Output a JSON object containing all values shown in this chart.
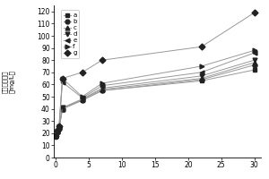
{
  "x": [
    0,
    0.25,
    0.5,
    1,
    4,
    7,
    22,
    30
  ],
  "series": {
    "a": [
      18,
      22,
      25,
      40,
      47,
      55,
      63,
      72
    ],
    "b": [
      18,
      21,
      24,
      40,
      47,
      55,
      64,
      76
    ],
    "c": [
      18,
      21,
      24,
      40,
      48,
      56,
      65,
      78
    ],
    "d": [
      18,
      21,
      24,
      41,
      48,
      57,
      67,
      80
    ],
    "e": [
      18,
      21,
      25,
      62,
      49,
      59,
      70,
      86
    ],
    "f": [
      18,
      22,
      26,
      65,
      50,
      61,
      75,
      88
    ],
    "g": [
      18,
      22,
      26,
      65,
      70,
      80,
      91,
      119
    ]
  },
  "markers": {
    "a": "s",
    "b": "o",
    "c": "^",
    "d": "v",
    "e": "<",
    "f": ">",
    "g": "D"
  },
  "ylabel_chars": [
    "溶",
    "解",
    "性",
    "总",
    "固",
    "体",
    "",
    "(mg/L)"
  ],
  "ylim": [
    0,
    125
  ],
  "xlim": [
    -0.3,
    31
  ],
  "yticks": [
    0,
    10,
    20,
    30,
    40,
    50,
    60,
    70,
    80,
    90,
    100,
    110,
    120
  ],
  "xticks": [
    0,
    5,
    10,
    15,
    20,
    25,
    30
  ],
  "line_color": "#999999",
  "marker_color": "#222222",
  "marker_size": 3.5,
  "legend_labels": [
    "a",
    "b",
    "c",
    "d",
    "e",
    "f",
    "g"
  ]
}
